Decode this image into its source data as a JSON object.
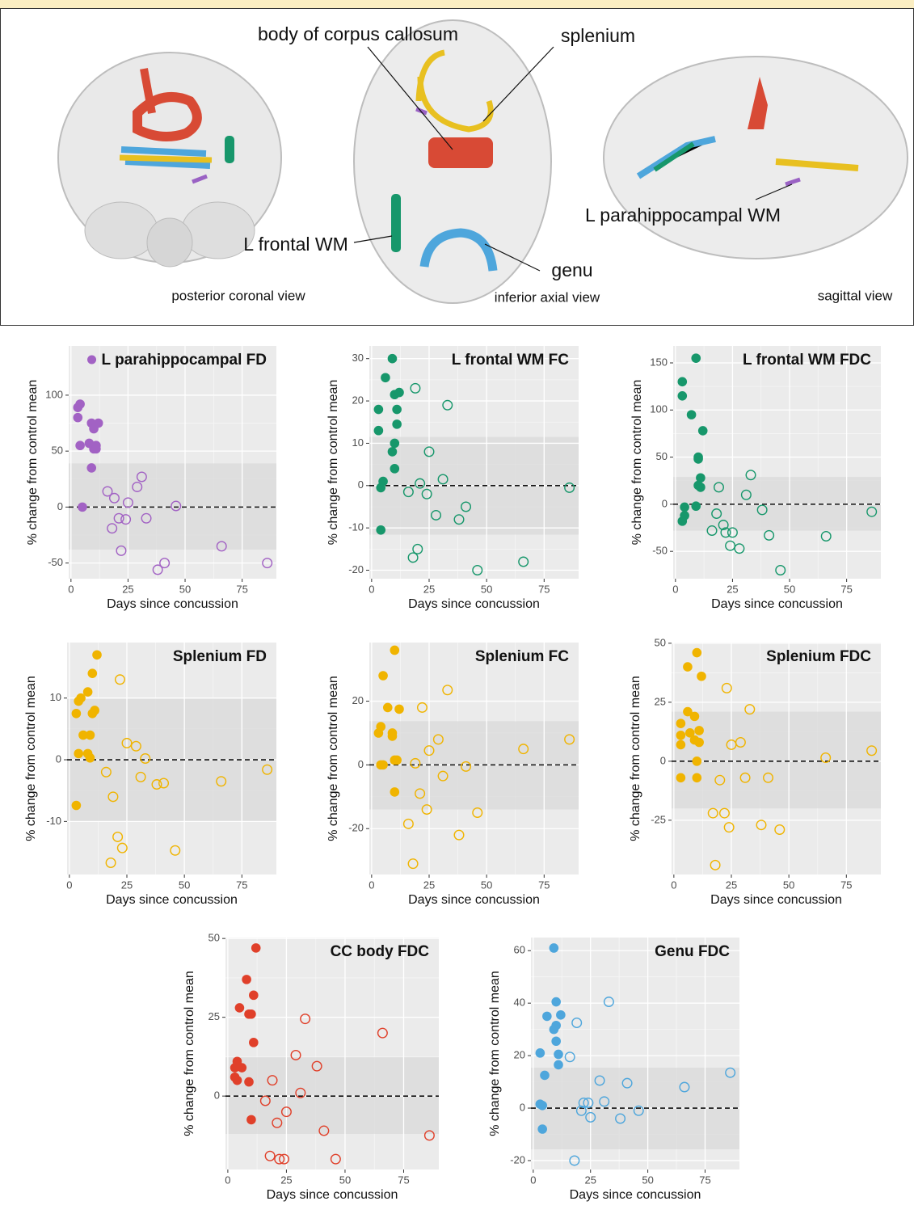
{
  "brain_panel": {
    "labels": [
      "body of corpus callosum",
      "splenium",
      "L frontal WM",
      "genu",
      "L parahippocampal WM"
    ],
    "views": [
      "posterior coronal view",
      "inferior axial view",
      "sagittal view"
    ]
  },
  "chart_data": [
    {
      "type": "scatter",
      "title": "L parahippocampal FD",
      "title_marker": true,
      "xlabel": "Days since concussion",
      "ylabel": "% change from control mean",
      "xlim": [
        -1,
        90
      ],
      "ylim": [
        -64,
        144
      ],
      "xticks": [
        0,
        25,
        50,
        75
      ],
      "yticks": [
        -50,
        0,
        50,
        100
      ],
      "band": [
        -38,
        39
      ],
      "reference_line": 0,
      "series": [
        {
          "marker": "filled",
          "color": "#a262c4",
          "x": [
            3,
            3,
            4,
            4,
            5,
            8,
            9,
            9,
            10,
            10,
            11,
            12,
            11
          ],
          "values": [
            80,
            89,
            92,
            55,
            0,
            57,
            75,
            35,
            70,
            52,
            55,
            75,
            52
          ]
        },
        {
          "marker": "open",
          "color": "#a262c4",
          "x": [
            16,
            18,
            19,
            21,
            22,
            24,
            25,
            29,
            31,
            33,
            38,
            41,
            46,
            66,
            86
          ],
          "values": [
            14,
            -19,
            8,
            -10,
            -39,
            -11,
            4,
            18,
            27,
            -10,
            -56,
            -50,
            1,
            -35,
            -50
          ]
        }
      ]
    },
    {
      "type": "scatter",
      "title": "L frontal WM FC",
      "xlabel": "Days since concussion",
      "ylabel": "% change from control mean",
      "xlim": [
        -1,
        90
      ],
      "ylim": [
        -22,
        33
      ],
      "xticks": [
        0,
        25,
        50,
        75
      ],
      "yticks": [
        -20,
        -10,
        0,
        10,
        20,
        30
      ],
      "band": [
        -11.6,
        11.5
      ],
      "reference_line": 0,
      "series": [
        {
          "marker": "filled",
          "color": "#17976b",
          "x": [
            3,
            3,
            4,
            4,
            5,
            6,
            9,
            9,
            10,
            10,
            10,
            11,
            11,
            12
          ],
          "values": [
            18,
            13,
            -0.5,
            -10.5,
            1,
            25.5,
            30,
            8,
            4,
            10,
            21.5,
            18,
            14.5,
            22
          ]
        },
        {
          "marker": "open",
          "color": "#17976b",
          "x": [
            16,
            18,
            19,
            20,
            21,
            24,
            25,
            28,
            31,
            33,
            38,
            41,
            46,
            66,
            86
          ],
          "values": [
            -1.5,
            -17,
            23,
            -15,
            0.5,
            -2,
            8,
            -7,
            1.5,
            19,
            -8,
            -5,
            -20,
            -18,
            -0.5
          ]
        }
      ]
    },
    {
      "type": "scatter",
      "title": "L frontal WM FDC",
      "xlabel": "Days since concussion",
      "ylabel": "% change from control mean",
      "xlim": [
        -1,
        90
      ],
      "ylim": [
        -79,
        168
      ],
      "xticks": [
        0,
        25,
        50,
        75
      ],
      "yticks": [
        -50,
        0,
        50,
        100,
        150
      ],
      "band": [
        -28,
        29
      ],
      "reference_line": 0,
      "series": [
        {
          "marker": "filled",
          "color": "#17976b",
          "x": [
            3,
            3,
            3,
            4,
            4,
            7,
            9,
            9,
            10,
            10,
            10,
            11,
            11,
            12
          ],
          "values": [
            130,
            115,
            -18,
            -12,
            -3,
            95,
            155,
            -2,
            50,
            48,
            20,
            28,
            18,
            78
          ]
        },
        {
          "marker": "open",
          "color": "#17976b",
          "x": [
            16,
            18,
            19,
            21,
            22,
            24,
            25,
            28,
            31,
            33,
            38,
            41,
            46,
            66,
            86
          ],
          "values": [
            -28,
            -10,
            18,
            -22,
            -30,
            -44,
            -30,
            -47,
            10,
            31,
            -6,
            -33,
            -70,
            -34,
            -8
          ]
        }
      ]
    },
    {
      "type": "scatter",
      "title": "Splenium FD",
      "xlabel": "Days since concussion",
      "ylabel": "% change from control mean",
      "xlim": [
        -1,
        90
      ],
      "ylim": [
        -18.6,
        19
      ],
      "xticks": [
        0,
        25,
        50,
        75
      ],
      "yticks": [
        -10,
        0,
        10
      ],
      "band": [
        -10,
        10
      ],
      "reference_line": 0,
      "series": [
        {
          "marker": "filled",
          "color": "#f0b400",
          "x": [
            3,
            3,
            4,
            4,
            5,
            6,
            8,
            8,
            9,
            9,
            10,
            10,
            11,
            12
          ],
          "values": [
            7.5,
            -7.4,
            1,
            9.5,
            10,
            4,
            11,
            1,
            4,
            0.3,
            7.5,
            14,
            8,
            17
          ]
        },
        {
          "marker": "open",
          "color": "#f0b400",
          "x": [
            16,
            18,
            19,
            21,
            22,
            23,
            25,
            29,
            31,
            33,
            38,
            41,
            46,
            66,
            86
          ],
          "values": [
            -2,
            -16.7,
            -6,
            -12.5,
            13,
            -14.3,
            2.7,
            2.2,
            -2.8,
            0.2,
            -4,
            -3.8,
            -14.7,
            -3.5,
            -1.6
          ]
        }
      ]
    },
    {
      "type": "scatter",
      "title": "Splenium FC",
      "xlabel": "Days since concussion",
      "ylabel": "% change from control mean",
      "xlim": [
        -1,
        90
      ],
      "ylim": [
        -34.4,
        38.4
      ],
      "xticks": [
        0,
        25,
        50,
        75
      ],
      "yticks": [
        -20,
        0,
        20
      ],
      "band": [
        -14,
        13.7
      ],
      "reference_line": 0,
      "series": [
        {
          "marker": "filled",
          "color": "#f0b400",
          "x": [
            3,
            4,
            4,
            5,
            5,
            7,
            9,
            9,
            10,
            10,
            10,
            11,
            12
          ],
          "values": [
            10,
            12,
            0,
            0,
            28,
            18,
            10,
            9,
            -8.5,
            36,
            1.5,
            1.5,
            17.5
          ]
        },
        {
          "marker": "open",
          "color": "#f0b400",
          "x": [
            16,
            18,
            19,
            21,
            22,
            24,
            25,
            29,
            31,
            33,
            38,
            41,
            46,
            66,
            86
          ],
          "values": [
            -18.5,
            -31,
            0.5,
            -9,
            18,
            -14,
            4.5,
            8,
            -3.5,
            23.5,
            -22,
            -0.5,
            -15,
            5,
            8
          ]
        }
      ]
    },
    {
      "type": "scatter",
      "title": "Splenium FDC",
      "xlabel": "Days since concussion",
      "ylabel": "% change from control mean",
      "xlim": [
        -1,
        90
      ],
      "ylim": [
        -48,
        50.3
      ],
      "xticks": [
        0,
        25,
        50,
        75
      ],
      "yticks": [
        -25,
        0,
        25,
        50
      ],
      "band": [
        -20,
        21
      ],
      "reference_line": 0,
      "series": [
        {
          "marker": "filled",
          "color": "#f0b400",
          "x": [
            3,
            3,
            3,
            3,
            6,
            6,
            7,
            9,
            9,
            10,
            10,
            10,
            11,
            11,
            12
          ],
          "values": [
            16,
            11,
            7,
            -7,
            40,
            21,
            12,
            19,
            9,
            -7,
            0,
            46,
            8,
            13,
            36
          ]
        },
        {
          "marker": "open",
          "color": "#f0b400",
          "x": [
            17,
            18,
            20,
            22,
            23,
            24,
            25,
            29,
            31,
            33,
            38,
            41,
            46,
            66,
            86
          ],
          "values": [
            -22,
            -44,
            -8,
            -22,
            31,
            -28,
            7,
            8,
            -7,
            22,
            -27,
            -7,
            -29,
            1.5,
            4.5
          ]
        }
      ]
    },
    {
      "type": "scatter",
      "title": "CC body FDC",
      "xlabel": "Days since concussion",
      "ylabel": "% change from control mean",
      "xlim": [
        -1,
        90
      ],
      "ylim": [
        -23.3,
        50.3
      ],
      "xticks": [
        0,
        25,
        50,
        75
      ],
      "yticks": [
        0,
        25,
        50
      ],
      "band": [
        -12,
        12.3
      ],
      "reference_line": 0,
      "series": [
        {
          "marker": "filled",
          "color": "#e0402a",
          "x": [
            3,
            3,
            4,
            4,
            5,
            6,
            8,
            9,
            9,
            10,
            10,
            11,
            11,
            12
          ],
          "values": [
            9,
            6,
            11,
            5,
            28,
            9,
            37,
            26,
            4.5,
            26,
            -7.5,
            32,
            17,
            47
          ]
        },
        {
          "marker": "open",
          "color": "#e0402a",
          "x": [
            16,
            18,
            19,
            21,
            22,
            24,
            25,
            29,
            31,
            33,
            38,
            41,
            46,
            66,
            86
          ],
          "values": [
            -1.5,
            -19,
            5,
            -8.5,
            -20,
            -20,
            -5,
            13,
            1,
            24.5,
            9.5,
            -11,
            -20,
            20,
            -12.5
          ]
        }
      ]
    },
    {
      "type": "scatter",
      "title": "Genu FDC",
      "xlabel": "Days since concussion",
      "ylabel": "% change from control mean",
      "xlim": [
        -1,
        90
      ],
      "ylim": [
        -23.4,
        65
      ],
      "xticks": [
        0,
        25,
        50,
        75
      ],
      "yticks": [
        -20,
        0,
        20,
        40,
        60
      ],
      "band": [
        -15.7,
        15.4
      ],
      "reference_line": 0,
      "series": [
        {
          "marker": "filled",
          "color": "#4ea6dc",
          "x": [
            3,
            3,
            4,
            4,
            5,
            6,
            9,
            9,
            10,
            10,
            10,
            11,
            11,
            12
          ],
          "values": [
            21,
            1.5,
            1,
            -8,
            12.5,
            35,
            61,
            30,
            40.5,
            31.5,
            25.5,
            20.5,
            16.5,
            35.5
          ]
        },
        {
          "marker": "open",
          "color": "#4ea6dc",
          "x": [
            16,
            18,
            19,
            21,
            22,
            24,
            25,
            29,
            31,
            33,
            38,
            41,
            46,
            66,
            86
          ],
          "values": [
            19.5,
            -20,
            32.5,
            -1,
            2,
            2,
            -3.5,
            10.5,
            2.5,
            40.5,
            -4,
            9.5,
            -1,
            8,
            13.5
          ]
        }
      ]
    }
  ]
}
